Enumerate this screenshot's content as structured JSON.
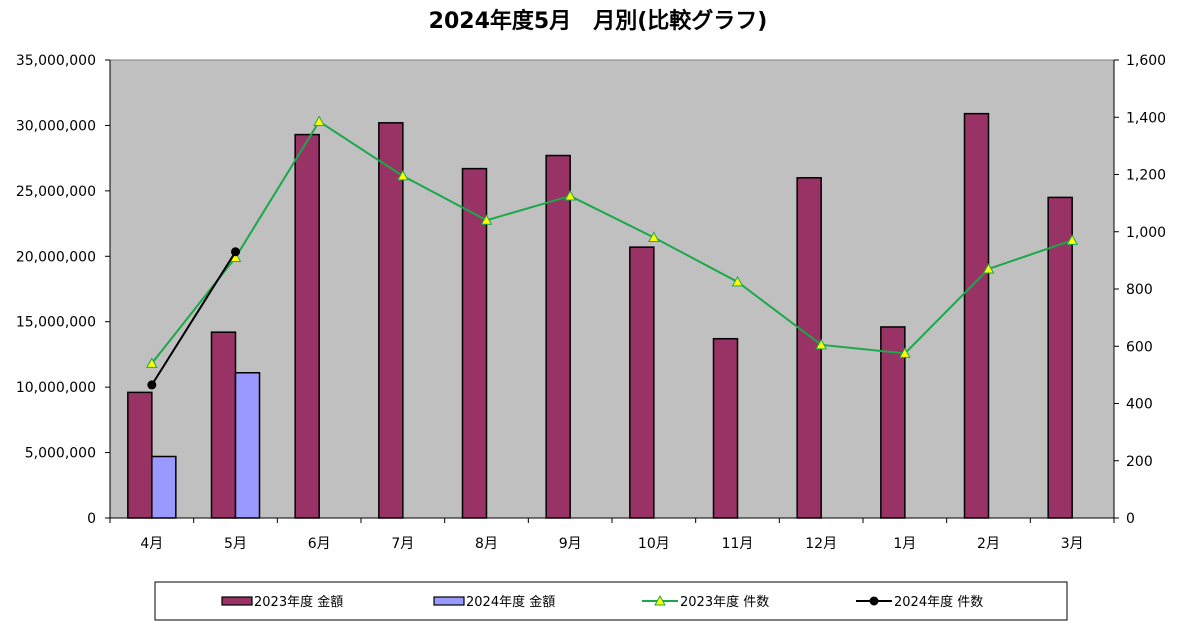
{
  "chart_data": {
    "type": "bar",
    "title": "2024年度5月　月別(比較グラフ)",
    "categories": [
      "4月",
      "5月",
      "6月",
      "7月",
      "8月",
      "9月",
      "10月",
      "11月",
      "12月",
      "1月",
      "2月",
      "3月"
    ],
    "y_left": {
      "min": 0,
      "max": 35000000,
      "step": 5000000,
      "tick_labels": [
        "0",
        "5,000,000",
        "10,000,000",
        "15,000,000",
        "20,000,000",
        "25,000,000",
        "30,000,000",
        "35,000,000"
      ]
    },
    "y_right": {
      "min": 0,
      "max": 1600,
      "step": 200,
      "tick_labels": [
        "0",
        "200",
        "400",
        "600",
        "800",
        "1,000",
        "1,200",
        "1,400",
        "1,600"
      ]
    },
    "grid": false,
    "plot_background": "#c0c0c0",
    "legend_position": "bottom",
    "bar_series": [
      {
        "name": "2023年度 金額",
        "axis": "left",
        "color": "#993366",
        "values": [
          9600000,
          14200000,
          29300000,
          30200000,
          26700000,
          27700000,
          20700000,
          13700000,
          26000000,
          14600000,
          30900000,
          24500000
        ]
      },
      {
        "name": "2024年度 金額",
        "axis": "left",
        "color": "#9999ff",
        "values": [
          4700000,
          11100000,
          null,
          null,
          null,
          null,
          null,
          null,
          null,
          null,
          null,
          null
        ]
      }
    ],
    "line_series": [
      {
        "name": "2023年度 件数",
        "axis": "right",
        "color": "#1aa84a",
        "marker": "triangle",
        "marker_color": "#ffff00",
        "values": [
          540,
          910,
          1385,
          1195,
          1040,
          1125,
          980,
          825,
          605,
          575,
          870,
          970
        ]
      },
      {
        "name": "2024年度 件数",
        "axis": "right",
        "color": "#000000",
        "marker": "circle",
        "marker_color": "#000000",
        "values": [
          465,
          930,
          null,
          null,
          null,
          null,
          null,
          null,
          null,
          null,
          null,
          null
        ]
      }
    ]
  }
}
